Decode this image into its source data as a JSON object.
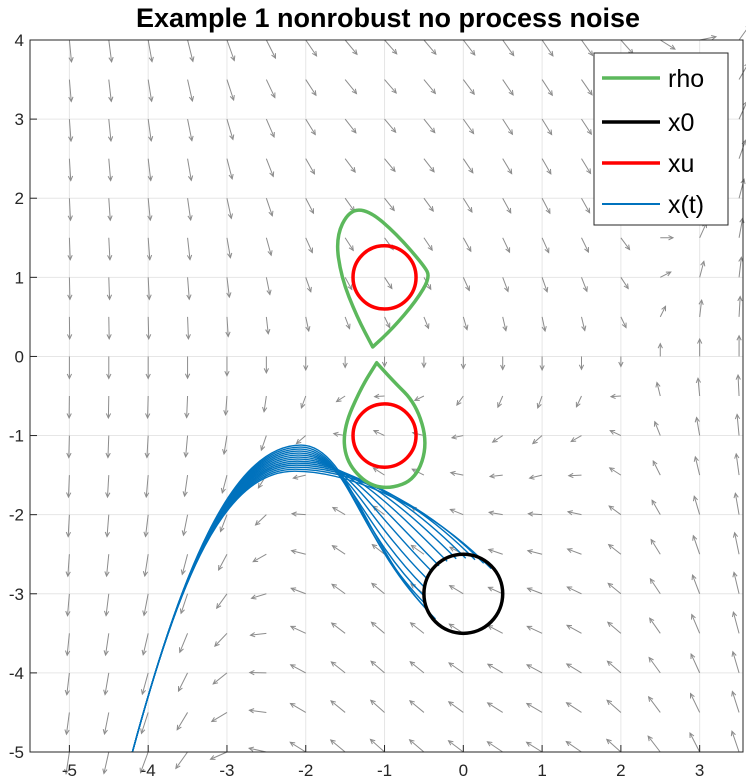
{
  "chart_data": {
    "type": "line",
    "title": "Example 1 nonrobust no process noise",
    "xlabel": "",
    "ylabel": "",
    "xlim": [
      -5.5,
      3.55
    ],
    "ylim": [
      -5,
      4
    ],
    "x_ticks": [
      "-5",
      "-4",
      "-3",
      "-2",
      "-1",
      "0",
      "1",
      "2",
      "3"
    ],
    "y_ticks": [
      "4",
      "3",
      "2",
      "1",
      "0",
      "-1",
      "-2",
      "-3",
      "-4",
      "-5"
    ],
    "grid": true,
    "legend_position": "top-right",
    "legend": [
      {
        "label": "rho",
        "color": "#5cb85c"
      },
      {
        "label": "x0",
        "color": "#000000"
      },
      {
        "label": "xu",
        "color": "#ff0000"
      },
      {
        "label": "x(t)",
        "color": "#0072bd"
      }
    ],
    "colors": {
      "rho": "#5cb85c",
      "x0": "#000000",
      "xu": "#ff0000",
      "trajectories": "#0072bd",
      "vector_field": "#8c8c8c",
      "grid": "#e6e6e6"
    },
    "x0_set": {
      "center": [
        0,
        -3
      ],
      "radius": 0.5
    },
    "xu_sets": [
      {
        "center": [
          -1,
          1
        ],
        "radius": 0.4
      },
      {
        "center": [
          -1,
          -1
        ],
        "radius": 0.4
      }
    ],
    "rho_contours": [
      {
        "points": [
          [
            -1.15,
            0.12
          ],
          [
            -1.35,
            0.5
          ],
          [
            -1.55,
            1.0
          ],
          [
            -1.62,
            1.5
          ],
          [
            -1.45,
            1.85
          ],
          [
            -1.2,
            1.85
          ],
          [
            -0.85,
            1.55
          ],
          [
            -0.5,
            1.15
          ],
          [
            -0.42,
            1.0
          ],
          [
            -0.6,
            0.7
          ],
          [
            -0.9,
            0.35
          ],
          [
            -1.15,
            0.12
          ]
        ]
      },
      {
        "points": [
          [
            -1.1,
            -0.08
          ],
          [
            -1.3,
            -0.4
          ],
          [
            -1.52,
            -0.9
          ],
          [
            -1.5,
            -1.3
          ],
          [
            -1.25,
            -1.6
          ],
          [
            -0.95,
            -1.68
          ],
          [
            -0.6,
            -1.55
          ],
          [
            -0.45,
            -1.1
          ],
          [
            -0.6,
            -0.6
          ],
          [
            -0.9,
            -0.3
          ],
          [
            -1.1,
            -0.08
          ]
        ]
      }
    ],
    "trajectories": {
      "count": 14,
      "start_circle": {
        "center": [
          0,
          -3
        ],
        "radius": 0.5
      },
      "peak_x": -2.1,
      "peak_y_range": [
        -1.12,
        -1.45
      ],
      "end_x": -4.2,
      "end_y": -5
    },
    "vector_field": {
      "x_start": -5,
      "x_end": 3.5,
      "y_start": -5,
      "y_end": 4,
      "step": 0.5
    }
  }
}
